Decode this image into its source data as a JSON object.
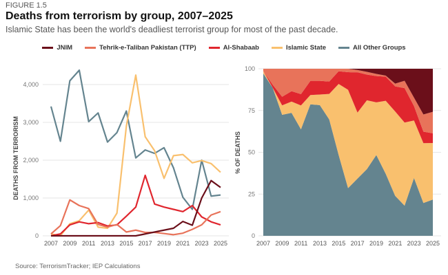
{
  "figure_label": "FIGURE 1.5",
  "title": "Deaths from terrorism by group, 2007–2025",
  "subtitle": "Islamic State has been the world's deadliest terrorist group for most of the past decade.",
  "source": "Source: TerrorismTracker; IEP Calculations",
  "chart_data": [
    {
      "type": "line",
      "ylabel": "DEATHS FROM TERRORISM",
      "ylim": [
        0,
        4500
      ],
      "yticks": [
        "0",
        "1,000",
        "2,000",
        "3,000",
        "4,000"
      ],
      "ytick_values": [
        0,
        1000,
        2000,
        3000,
        4000
      ],
      "x": [
        2007,
        2008,
        2009,
        2010,
        2011,
        2012,
        2013,
        2014,
        2015,
        2016,
        2017,
        2018,
        2019,
        2020,
        2021,
        2022,
        2023,
        2024,
        2025
      ],
      "xticks": [
        "2007",
        "2009",
        "2011",
        "2013",
        "2015",
        "2017",
        "2019",
        "2021",
        "2023",
        "2025"
      ],
      "series": [
        {
          "name": "JNIM",
          "color": "#6b0f1a",
          "values": [
            0,
            0,
            0,
            0,
            0,
            0,
            0,
            0,
            0,
            0,
            50,
            100,
            150,
            200,
            380,
            280,
            1000,
            1460,
            1280
          ]
        },
        {
          "name": "Tehrik-e-Taliban Pakistan (TTP)",
          "color": "#e8735a",
          "values": [
            50,
            270,
            950,
            800,
            720,
            300,
            230,
            300,
            100,
            150,
            90,
            90,
            60,
            30,
            70,
            170,
            290,
            550,
            640
          ]
        },
        {
          "name": "Al-Shabaab",
          "color": "#e0262e",
          "values": [
            0,
            50,
            290,
            370,
            320,
            350,
            260,
            290,
            520,
            760,
            1600,
            840,
            760,
            700,
            640,
            800,
            500,
            370,
            290
          ]
        },
        {
          "name": "Islamic State",
          "color": "#f9c06e",
          "values": [
            50,
            0,
            320,
            400,
            680,
            230,
            200,
            600,
            2900,
            4250,
            2620,
            2250,
            1520,
            2120,
            2150,
            1930,
            1990,
            1910,
            1680
          ]
        },
        {
          "name": "All Other Groups",
          "color": "#64848f",
          "values": [
            3420,
            2500,
            4100,
            4380,
            3020,
            3250,
            2480,
            2730,
            3300,
            2060,
            2270,
            2180,
            2330,
            1800,
            1020,
            700,
            2000,
            1050,
            1080
          ]
        }
      ]
    },
    {
      "type": "area",
      "stacked_percent": true,
      "ylabel": "% OF DEATHS",
      "ylim": [
        0,
        100
      ],
      "yticks": [
        "0",
        "25",
        "50",
        "75",
        "100"
      ],
      "ytick_values": [
        0,
        25,
        50,
        75,
        100
      ],
      "xticks": [
        "2007",
        "2009",
        "2011",
        "2013",
        "2015",
        "2017",
        "2019",
        "2021",
        "2023",
        "2025"
      ],
      "stack_order": [
        "All Other Groups",
        "Islamic State",
        "Al-Shabaab",
        "Tehrik-e-Taliban Pakistan (TTP)",
        "JNIM"
      ],
      "note": "shares computed from line chart series"
    }
  ]
}
